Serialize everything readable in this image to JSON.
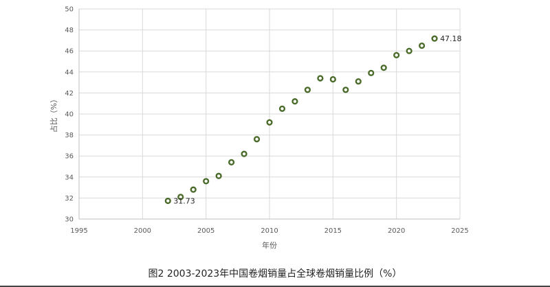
{
  "caption": "图2 2003-2023年中国卷烟销量占全球卷烟销量比例（%）",
  "chart_data": {
    "type": "scatter",
    "title": "",
    "xlabel": "年份",
    "ylabel": "占比（%）",
    "xlim": [
      1995,
      2025
    ],
    "ylim": [
      30,
      50
    ],
    "x_ticks": [
      1995,
      2000,
      2005,
      2010,
      2015,
      2020,
      2025
    ],
    "y_ticks": [
      30,
      32,
      34,
      36,
      38,
      40,
      42,
      44,
      46,
      48,
      50
    ],
    "grid": true,
    "marker": {
      "stroke": "#4a6b2a",
      "fill": "#ffffff"
    },
    "axis_color": "#bfbfbf",
    "grid_color": "#d9d9d9",
    "x": [
      2002,
      2003,
      2004,
      2005,
      2006,
      2007,
      2008,
      2009,
      2010,
      2011,
      2012,
      2013,
      2014,
      2015,
      2016,
      2017,
      2018,
      2019,
      2020,
      2021,
      2022,
      2023
    ],
    "y": [
      31.73,
      32.1,
      32.8,
      33.6,
      34.1,
      35.4,
      36.2,
      37.6,
      39.2,
      40.5,
      41.2,
      42.3,
      43.4,
      43.3,
      42.3,
      43.1,
      43.9,
      44.4,
      45.6,
      46.0,
      46.5,
      47.18
    ],
    "annotations": [
      {
        "x": 2002,
        "y": 31.73,
        "text": "31.73"
      },
      {
        "x": 2023,
        "y": 47.18,
        "text": "47.18"
      }
    ]
  }
}
